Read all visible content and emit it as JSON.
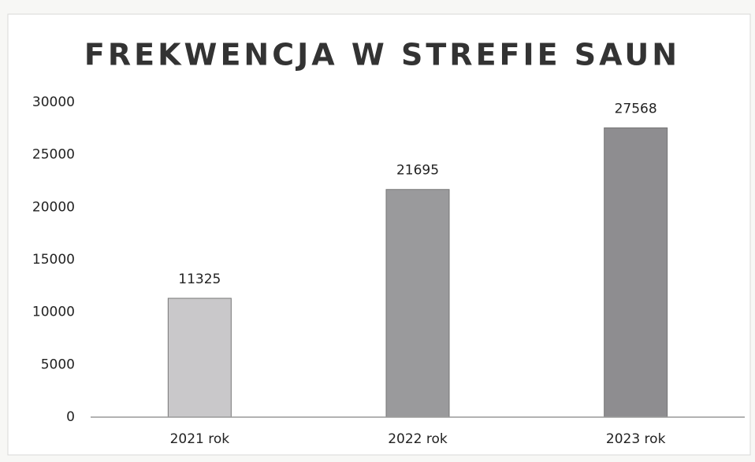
{
  "chart_data": {
    "type": "bar",
    "title": "FREKWENCJA W STREFIE SAUN",
    "categories": [
      "2021 rok",
      "2022 rok",
      "2023 rok"
    ],
    "values": [
      11325,
      21695,
      27568
    ],
    "colors": [
      "#c9c8ca",
      "#9a9a9c",
      "#8e8d90"
    ],
    "ylim": [
      0,
      30000
    ],
    "yticks": [
      0,
      5000,
      10000,
      15000,
      20000,
      25000,
      30000
    ],
    "grid": false
  }
}
